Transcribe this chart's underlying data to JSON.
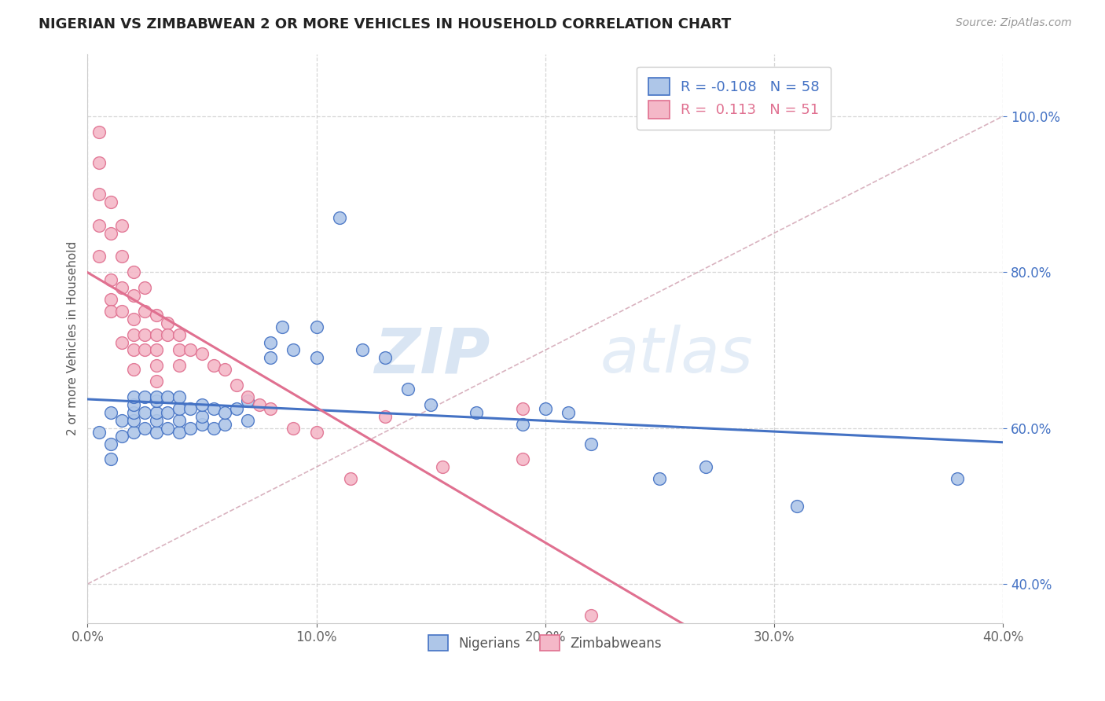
{
  "title": "NIGERIAN VS ZIMBABWEAN 2 OR MORE VEHICLES IN HOUSEHOLD CORRELATION CHART",
  "source": "Source: ZipAtlas.com",
  "ylabel_label": "2 or more Vehicles in Household",
  "legend_nigerian": "Nigerians",
  "legend_zimbabwean": "Zimbabweans",
  "R_nigerian": -0.108,
  "N_nigerian": 58,
  "R_zimbabwean": 0.113,
  "N_zimbabwean": 51,
  "nigerian_color": "#aec6e8",
  "nigerian_line_color": "#4472c4",
  "zimbabwean_color": "#f4b8c8",
  "zimbabwean_line_color": "#e07090",
  "diagonal_color": "#d0a0b0",
  "watermark_zip": "ZIP",
  "watermark_atlas": "atlas",
  "xlim": [
    0.0,
    0.4
  ],
  "ylim": [
    0.35,
    1.08
  ],
  "x_ticks": [
    0.0,
    0.1,
    0.2,
    0.3,
    0.4
  ],
  "x_tick_labels": [
    "0.0%",
    "10.0%",
    "20.0%",
    "30.0%",
    "40.0%"
  ],
  "y_ticks": [
    0.4,
    0.6,
    0.8,
    1.0
  ],
  "y_tick_labels": [
    "40.0%",
    "60.0%",
    "80.0%",
    "100.0%"
  ],
  "nigerian_x": [
    0.005,
    0.01,
    0.01,
    0.01,
    0.015,
    0.015,
    0.02,
    0.02,
    0.02,
    0.02,
    0.02,
    0.025,
    0.025,
    0.025,
    0.03,
    0.03,
    0.03,
    0.03,
    0.03,
    0.035,
    0.035,
    0.035,
    0.04,
    0.04,
    0.04,
    0.04,
    0.045,
    0.045,
    0.05,
    0.05,
    0.05,
    0.055,
    0.055,
    0.06,
    0.06,
    0.065,
    0.07,
    0.07,
    0.08,
    0.08,
    0.085,
    0.09,
    0.1,
    0.1,
    0.11,
    0.12,
    0.13,
    0.14,
    0.15,
    0.17,
    0.19,
    0.21,
    0.22,
    0.25,
    0.27,
    0.31,
    0.38,
    0.2
  ],
  "nigerian_y": [
    0.595,
    0.56,
    0.58,
    0.62,
    0.59,
    0.61,
    0.595,
    0.61,
    0.62,
    0.63,
    0.64,
    0.6,
    0.62,
    0.64,
    0.595,
    0.61,
    0.62,
    0.635,
    0.64,
    0.6,
    0.62,
    0.64,
    0.595,
    0.61,
    0.625,
    0.64,
    0.6,
    0.625,
    0.605,
    0.615,
    0.63,
    0.6,
    0.625,
    0.605,
    0.62,
    0.625,
    0.61,
    0.635,
    0.69,
    0.71,
    0.73,
    0.7,
    0.69,
    0.73,
    0.87,
    0.7,
    0.69,
    0.65,
    0.63,
    0.62,
    0.605,
    0.62,
    0.58,
    0.535,
    0.55,
    0.5,
    0.535,
    0.625
  ],
  "zimbabwean_x": [
    0.005,
    0.005,
    0.005,
    0.005,
    0.005,
    0.01,
    0.01,
    0.01,
    0.01,
    0.01,
    0.015,
    0.015,
    0.015,
    0.015,
    0.015,
    0.02,
    0.02,
    0.02,
    0.02,
    0.02,
    0.02,
    0.025,
    0.025,
    0.025,
    0.025,
    0.03,
    0.03,
    0.03,
    0.03,
    0.03,
    0.035,
    0.035,
    0.04,
    0.04,
    0.04,
    0.045,
    0.05,
    0.055,
    0.06,
    0.065,
    0.07,
    0.075,
    0.08,
    0.09,
    0.1,
    0.115,
    0.13,
    0.155,
    0.19,
    0.19,
    0.22
  ],
  "zimbabwean_y": [
    0.98,
    0.94,
    0.9,
    0.86,
    0.82,
    0.89,
    0.85,
    0.79,
    0.765,
    0.75,
    0.86,
    0.82,
    0.78,
    0.75,
    0.71,
    0.8,
    0.77,
    0.74,
    0.72,
    0.7,
    0.675,
    0.78,
    0.75,
    0.72,
    0.7,
    0.745,
    0.72,
    0.7,
    0.68,
    0.66,
    0.735,
    0.72,
    0.72,
    0.7,
    0.68,
    0.7,
    0.695,
    0.68,
    0.675,
    0.655,
    0.64,
    0.63,
    0.625,
    0.6,
    0.595,
    0.535,
    0.615,
    0.55,
    0.625,
    0.56,
    0.36
  ]
}
